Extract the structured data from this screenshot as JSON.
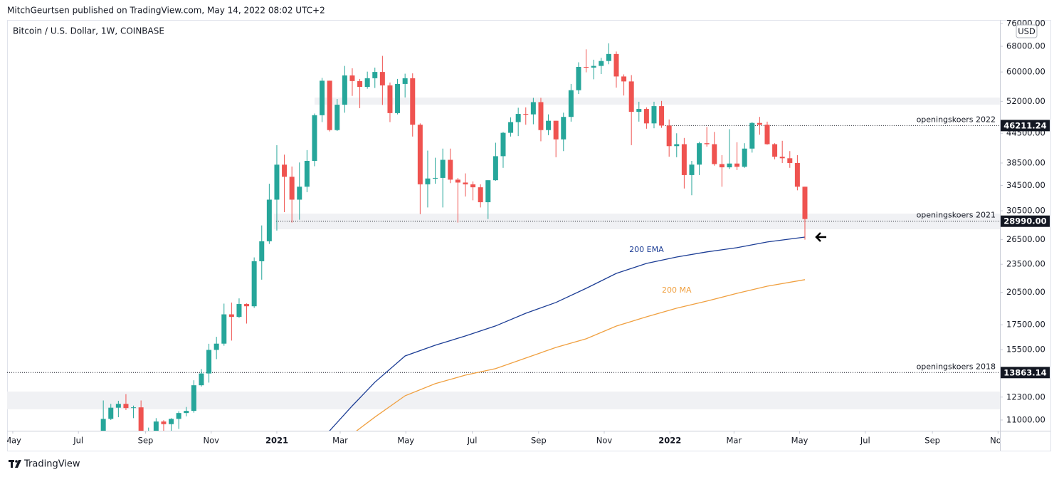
{
  "header": {
    "published": "MitchGeurtsen published on TradingView.com, May 14, 2022 08:02 UTC+2"
  },
  "footer": {
    "brand": "TradingView"
  },
  "chart_data": {
    "type": "candlestick",
    "title": "Bitcoin / U.S. Dollar, 1W, COINBASE",
    "currency": "USD",
    "log_scale": true,
    "up_color": "#26a69a",
    "down_color": "#ef5350",
    "xlim": [
      -0.75,
      130.85
    ],
    "xticks": [
      {
        "value": 0,
        "label": "May"
      },
      {
        "value": 8.7,
        "label": "Jul"
      },
      {
        "value": 17.6,
        "label": "Sep"
      },
      {
        "value": 26.3,
        "label": "Nov"
      },
      {
        "value": 35,
        "label": "2021"
      },
      {
        "value": 43.4,
        "label": "Mar"
      },
      {
        "value": 52.1,
        "label": "May"
      },
      {
        "value": 60.9,
        "label": "Jul"
      },
      {
        "value": 69.7,
        "label": "Sep"
      },
      {
        "value": 78.4,
        "label": "Nov"
      },
      {
        "value": 87.1,
        "label": "2022"
      },
      {
        "value": 95.6,
        "label": "Mar"
      },
      {
        "value": 104.3,
        "label": "May"
      },
      {
        "value": 113,
        "label": "Jul"
      },
      {
        "value": 121.9,
        "label": "Sep"
      },
      {
        "value": 130.6,
        "label": "Nov"
      }
    ],
    "ylim": [
      10440,
      77330
    ],
    "yticks": [
      {
        "value": 76000,
        "label": "76000.00"
      },
      {
        "value": 68000,
        "label": "68000.00"
      },
      {
        "value": 60000,
        "label": "60000.00"
      },
      {
        "value": 52000,
        "label": "52000.00"
      },
      {
        "value": 44500,
        "label": "44500.00"
      },
      {
        "value": 38500,
        "label": "38500.00"
      },
      {
        "value": 34500,
        "label": "34500.00"
      },
      {
        "value": 30500,
        "label": "30500.00"
      },
      {
        "value": 26500,
        "label": "26500.00"
      },
      {
        "value": 23500,
        "label": "23500.00"
      },
      {
        "value": 20500,
        "label": "20500.00"
      },
      {
        "value": 17500,
        "label": "17500.00"
      },
      {
        "value": 15500,
        "label": "15500.00"
      },
      {
        "value": 12300,
        "label": "12300.00"
      },
      {
        "value": 11000,
        "label": "11000.00"
      }
    ],
    "x": [
      12,
      13,
      14,
      15,
      16,
      17,
      18,
      19,
      20,
      21,
      22,
      23,
      24,
      25,
      26,
      27,
      28,
      29,
      30,
      31,
      32,
      33,
      34,
      35,
      36,
      37,
      38,
      39,
      40,
      41,
      42,
      43,
      44,
      45,
      46,
      47,
      48,
      49,
      50,
      51,
      52,
      53,
      54,
      55,
      56,
      57,
      58,
      59,
      60,
      61,
      62,
      63,
      64,
      65,
      66,
      67,
      68,
      69,
      70,
      71,
      72,
      73,
      74,
      75,
      76,
      77,
      78,
      79,
      80,
      81,
      82,
      83,
      84,
      85,
      86,
      87,
      88,
      89,
      90,
      91,
      92,
      93,
      94,
      95,
      96,
      97,
      98,
      99,
      100,
      101,
      102,
      103,
      104,
      105
    ],
    "open": [
      9930,
      11060,
      11680,
      11900,
      11660,
      11700,
      10250,
      10320,
      10920,
      10780,
      11060,
      11380,
      11500,
      13030,
      13800,
      15480,
      15960,
      18410,
      18180,
      19360,
      19150,
      23850,
      26290,
      32200,
      38190,
      36000,
      32200,
      34300,
      38900,
      48600,
      57500,
      45200,
      51150,
      59000,
      57400,
      55800,
      58200,
      60000,
      56200,
      49100,
      56600,
      58200,
      46400,
      34700,
      35700,
      35800,
      39100,
      35500,
      35000,
      34700,
      34200,
      31800,
      35400,
      39800,
      44600,
      47000,
      48900,
      48800,
      51800,
      45200,
      47300,
      43200,
      48200,
      54900,
      61500,
      61300,
      61800,
      63300,
      65500,
      58700,
      57300,
      49400,
      50100,
      46700,
      50800,
      46200,
      41800,
      42200,
      36300,
      38200,
      42400,
      42200,
      38300,
      37700,
      38400,
      37800,
      41300,
      46800,
      46400,
      42200,
      39700,
      39400,
      38500,
      34300
    ],
    "high": [
      12100,
      11900,
      12080,
      12480,
      11800,
      12100,
      10600,
      11100,
      10990,
      11100,
      11480,
      11720,
      13350,
      14100,
      15950,
      16500,
      19400,
      19500,
      19900,
      19420,
      24300,
      28400,
      34800,
      42000,
      40100,
      37850,
      38600,
      41000,
      49000,
      58300,
      57500,
      52600,
      61800,
      61100,
      58000,
      60100,
      61300,
      64900,
      57000,
      58000,
      59500,
      59600,
      46700,
      40900,
      39500,
      41300,
      41300,
      35800,
      36600,
      35200,
      34700,
      35400,
      42500,
      44800,
      48100,
      50400,
      50500,
      52900,
      52900,
      48800,
      47300,
      49200,
      56600,
      62900,
      67000,
      63700,
      64300,
      69000,
      66300,
      59300,
      59100,
      51900,
      50500,
      51900,
      52100,
      47600,
      44500,
      43500,
      38900,
      42700,
      45900,
      44800,
      40000,
      45400,
      42600,
      42400,
      47000,
      48200,
      47100,
      42400,
      42900,
      40800,
      40000,
      34300
    ],
    "low": [
      9920,
      11000,
      11150,
      11550,
      11100,
      9900,
      9870,
      10200,
      10130,
      10370,
      10530,
      11200,
      11400,
      12950,
      13200,
      14800,
      15800,
      16200,
      18100,
      17600,
      19000,
      21800,
      25950,
      27700,
      30300,
      28800,
      29200,
      33400,
      37900,
      47000,
      44900,
      45000,
      49200,
      53400,
      50300,
      55300,
      55500,
      51100,
      47000,
      48800,
      53000,
      43800,
      30000,
      31000,
      34800,
      31000,
      34900,
      28800,
      32700,
      32100,
      31000,
      29300,
      35300,
      37600,
      43800,
      43900,
      46400,
      46500,
      42800,
      44100,
      39600,
      40800,
      47100,
      53900,
      59900,
      57900,
      59400,
      62300,
      55600,
      53500,
      42000,
      47100,
      45500,
      45600,
      45700,
      39700,
      39600,
      34000,
      32900,
      36300,
      41700,
      38000,
      34300,
      37400,
      37200,
      37600,
      40500,
      44200,
      42100,
      39200,
      38500,
      37600,
      33700,
      26500
    ],
    "close": [
      11060,
      11680,
      11900,
      11660,
      11700,
      10250,
      10320,
      10920,
      10780,
      11060,
      11380,
      11500,
      13030,
      13800,
      15480,
      15960,
      18410,
      18180,
      19360,
      19150,
      23850,
      26290,
      32200,
      38190,
      36000,
      32200,
      34300,
      38900,
      48600,
      57500,
      45200,
      51150,
      59000,
      57400,
      55800,
      58200,
      60000,
      56200,
      49100,
      56600,
      58200,
      46400,
      34700,
      35700,
      35800,
      39100,
      35500,
      35000,
      34700,
      34200,
      31800,
      35400,
      39800,
      44600,
      47000,
      48900,
      48800,
      51800,
      45200,
      47300,
      43200,
      48200,
      54900,
      61500,
      61300,
      61800,
      63300,
      65500,
      58700,
      57300,
      49400,
      50100,
      46700,
      50800,
      46200,
      41800,
      42200,
      36300,
      38200,
      42400,
      42200,
      38300,
      37700,
      38400,
      37800,
      41300,
      46800,
      46400,
      42200,
      39700,
      39400,
      38500,
      34300,
      29300
    ],
    "lines": [
      {
        "name": "200 EMA",
        "color": "#1c3d95",
        "x": [
          40,
          42,
          45,
          48,
          52,
          56,
          60,
          64,
          68,
          72,
          76,
          80,
          84,
          88,
          92,
          96,
          100,
          105
        ],
        "values": [
          9610,
          10440,
          11790,
          13230,
          15030,
          15840,
          16570,
          17400,
          18510,
          19510,
          20900,
          22480,
          23600,
          24350,
          24960,
          25480,
          26200,
          26830
        ]
      },
      {
        "name": "200 MA",
        "color": "#f0a040",
        "x": [
          44,
          48,
          52,
          56,
          60,
          64,
          68,
          72,
          76,
          80,
          84,
          88,
          92,
          96,
          100,
          105
        ],
        "values": [
          9985,
          11160,
          12380,
          13130,
          13690,
          14130,
          14880,
          15670,
          16340,
          17390,
          18190,
          18970,
          19640,
          20400,
          21120,
          21800
        ]
      }
    ],
    "levels": [
      {
        "text": "openingskoers 2022",
        "price": 46211.24,
        "label": "46211.24",
        "x": 86.5
      },
      {
        "text": "openingskoers 2021",
        "price": 28990,
        "label": "28990.00",
        "x": 34.9
      },
      {
        "text": "openingskoers 2018",
        "price": 13863.14,
        "label": "13863.14"
      }
    ],
    "zones": [
      {
        "y": [
          51180,
          52960
        ],
        "x": 40
      },
      {
        "y": [
          27870,
          30090
        ],
        "x": 34.6
      },
      {
        "y": [
          11590,
          12640
        ]
      }
    ]
  }
}
